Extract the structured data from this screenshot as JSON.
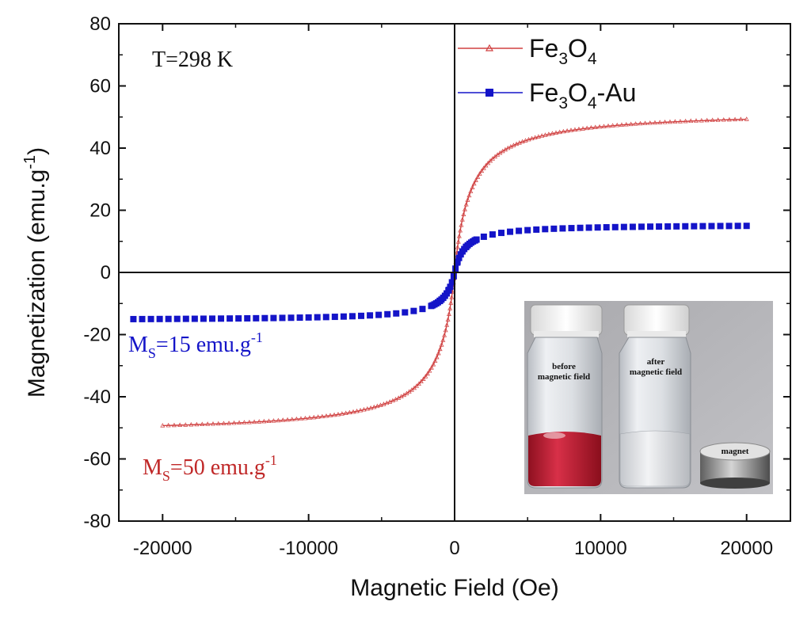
{
  "chart_data": {
    "type": "scatter",
    "xlabel": "Magnetic Field (Oe)",
    "ylabel_main": "Magnetization (emu.g",
    "ylabel_sup": "-1",
    "ylabel_close": ")",
    "xlim": [
      -23000,
      23000
    ],
    "ylim": [
      -80,
      80
    ],
    "x_ticks": [
      -20000,
      -10000,
      0,
      10000,
      20000
    ],
    "x_tick_labels": [
      "-20000",
      "-10000",
      "0",
      "10000",
      "20000"
    ],
    "y_ticks": [
      -80,
      -60,
      -40,
      -20,
      0,
      20,
      40,
      60,
      80
    ],
    "y_tick_labels": [
      "-80",
      "-60",
      "-40",
      "-20",
      "0",
      "20",
      "40",
      "60",
      "80"
    ],
    "legend_position": "top-right",
    "series": [
      {
        "name_main": "Fe",
        "name_sub1": "3",
        "name_mid": "O",
        "name_sub2": "4",
        "name_tail": "",
        "marker": "open-triangle",
        "color": "#d04040",
        "x_range": [
          -20000,
          20000
        ],
        "ms": 50,
        "plateau": 52,
        "h0": 1100,
        "n_points": 181
      },
      {
        "name_main": "Fe",
        "name_sub1": "3",
        "name_mid": "O",
        "name_sub2": "4",
        "name_tail": "-Au",
        "marker": "filled-square",
        "color": "#1414c8",
        "x_range": [
          -22000,
          20000
        ],
        "ms": 15,
        "plateau": 15.5,
        "h0": 700,
        "n_points": 73
      }
    ],
    "annotations": {
      "temperature": "T=298 K",
      "ms_blue_main": "M",
      "ms_blue_sub": "S",
      "ms_blue_value": "=15 emu.g",
      "ms_blue_sup": "-1",
      "ms_red_main": "M",
      "ms_red_sub": "S",
      "ms_red_value": "=50 emu.g",
      "ms_red_sup": "-1"
    },
    "inset": {
      "vial_left_label_1": "before",
      "vial_left_label_2": "magnetic field",
      "vial_right_label_1": "after",
      "vial_right_label_2": "magnetic field",
      "magnet_label": "magnet"
    }
  },
  "colors": {
    "red": "#d04040",
    "blue": "#1414c8",
    "axis": "#111111"
  }
}
